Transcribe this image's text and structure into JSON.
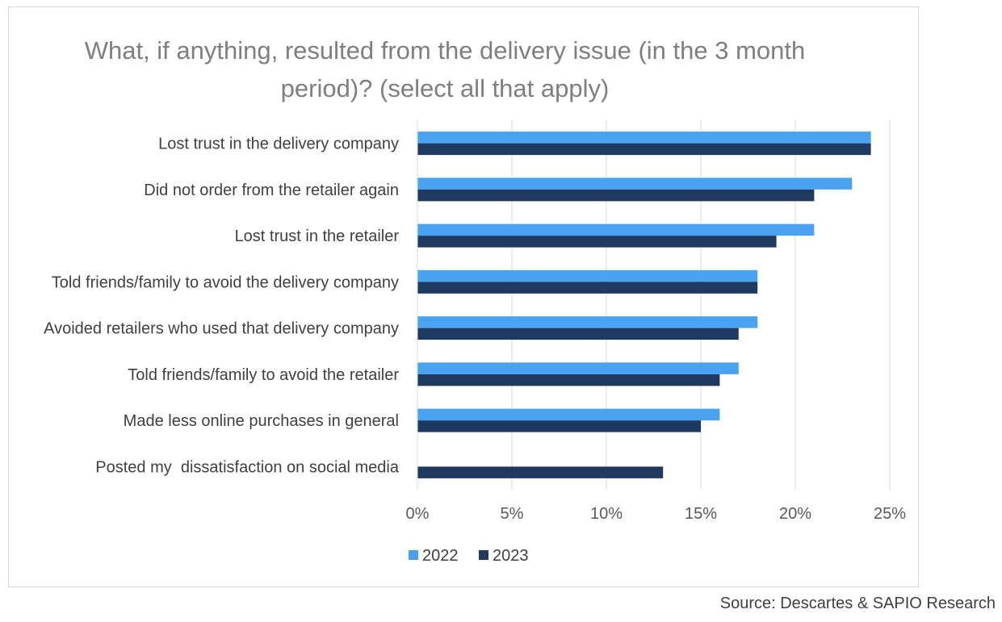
{
  "chart_data": {
    "type": "bar",
    "orientation": "horizontal",
    "title": "What, if anything, resulted from the delivery issue (in the 3 month period)? (select all that apply)",
    "categories": [
      "Lost trust in the delivery company",
      "Did not order from the retailer again",
      "Lost trust in the retailer",
      "Told friends/family to avoid the delivery company",
      "Avoided retailers who used that delivery company",
      "Told friends/family to avoid the retailer",
      "Made less online purchases in general",
      "Posted my  dissatisfaction on social media"
    ],
    "series": [
      {
        "name": "2022",
        "color": "#4aa3f0",
        "values": [
          24,
          23,
          21,
          18,
          18,
          17,
          16,
          0
        ]
      },
      {
        "name": "2023",
        "color": "#1f3a60",
        "values": [
          24,
          21,
          19,
          18,
          17,
          16,
          15,
          13
        ]
      }
    ],
    "xlim": [
      0,
      25
    ],
    "xticks": [
      0,
      5,
      10,
      15,
      20,
      25
    ],
    "tick_suffix": "%",
    "xlabel": "",
    "ylabel": "",
    "grid": true,
    "legend_position": "bottom"
  },
  "source": "Source: Descartes & SAPIO Research"
}
